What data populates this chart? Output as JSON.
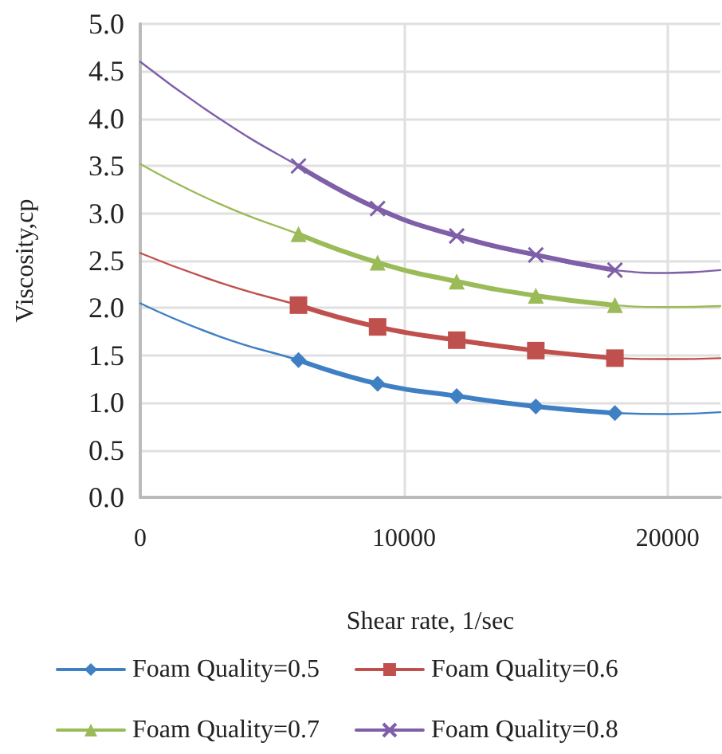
{
  "chart_data": {
    "type": "line",
    "xlabel": "Shear rate, 1/sec",
    "ylabel": "Viscosity,cp",
    "xlim": [
      0,
      22000
    ],
    "xticks": [
      0,
      10000,
      20000
    ],
    "ylim": [
      0,
      5
    ],
    "yticks": [
      {
        "value": 0,
        "label": "0.0"
      },
      0.5,
      {
        "value": 1,
        "label": "1.0"
      },
      1.5,
      {
        "value": 2,
        "label": "2.0"
      },
      2.5,
      {
        "value": 3,
        "label": "3.0"
      },
      3.5,
      {
        "value": 4,
        "label": "4.0"
      },
      4.5,
      {
        "value": 5,
        "label": "5.0"
      }
    ],
    "grid": true,
    "legend": "bottom",
    "line_style": "solid",
    "series": [
      {
        "name": "Foam Quality=0.5",
        "color": "#3f7fc4",
        "marker": "diamond",
        "x": [
          6000,
          9000,
          12000,
          15000,
          18000
        ],
        "values": [
          1.45,
          1.2,
          1.07,
          0.96,
          0.89
        ]
      },
      {
        "name": "Foam Quality=0.6",
        "color": "#c0504d",
        "marker": "square",
        "x": [
          6000,
          9000,
          12000,
          15000,
          18000
        ],
        "values": [
          2.03,
          1.8,
          1.66,
          1.55,
          1.47
        ]
      },
      {
        "name": "Foam Quality=0.7",
        "color": "#9bbb59",
        "marker": "triangle",
        "x": [
          6000,
          9000,
          12000,
          15000,
          18000
        ],
        "values": [
          2.78,
          2.48,
          2.28,
          2.13,
          2.03
        ]
      },
      {
        "name": "Foam Quality=0.8",
        "color": "#7f5fa8",
        "marker": "cross",
        "x": [
          6000,
          9000,
          12000,
          15000,
          18000
        ],
        "values": [
          3.5,
          3.05,
          2.76,
          2.56,
          2.4
        ]
      },
      {
        "color": "#3f7fc4",
        "marker": "none",
        "x": [
          0,
          3000,
          6000,
          9000,
          12000,
          15000,
          18000,
          20000,
          22000
        ],
        "values": [
          2.05,
          1.7,
          1.45,
          1.2,
          1.07,
          0.96,
          0.89,
          0.88,
          0.9
        ]
      },
      {
        "color": "#c0504d",
        "marker": "none",
        "x": [
          0,
          3000,
          6000,
          9000,
          12000,
          15000,
          18000,
          20000,
          22000
        ],
        "values": [
          2.58,
          2.27,
          2.03,
          1.8,
          1.65,
          1.55,
          1.47,
          1.46,
          1.47
        ]
      },
      {
        "color": "#9bbb59",
        "marker": "none",
        "x": [
          0,
          3000,
          6000,
          9000,
          12000,
          15000,
          18000,
          20000,
          22000
        ],
        "values": [
          3.52,
          3.1,
          2.78,
          2.48,
          2.28,
          2.13,
          2.03,
          2.01,
          2.02
        ]
      },
      {
        "color": "#7f5fa8",
        "marker": "none",
        "x": [
          0,
          3000,
          6000,
          9000,
          12000,
          15000,
          18000,
          20000,
          22000
        ],
        "values": [
          4.6,
          4.0,
          3.5,
          3.05,
          2.75,
          2.55,
          2.4,
          2.37,
          2.4
        ]
      }
    ]
  }
}
